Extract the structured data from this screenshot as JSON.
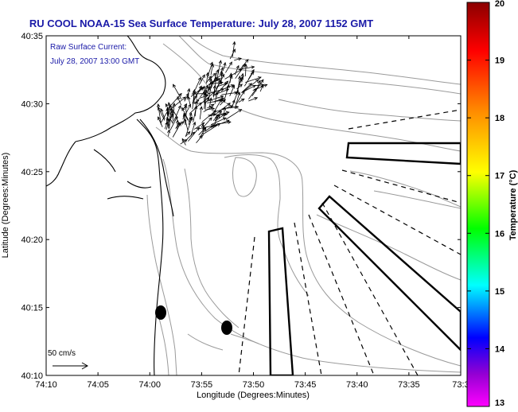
{
  "title": "RU COOL  NOAA-15  Sea Surface Temperature:  July 28, 2007 1152 GMT",
  "annotation": {
    "line1": "Raw Surface Current:",
    "line2": "July 28, 2007 13:00 GMT"
  },
  "scale_label": "50 cm/s",
  "axes": {
    "xlabel": "Longitude (Degrees:Minutes)",
    "ylabel": "Latitude (Degrees:Minutes)",
    "x_ticks": [
      "74:10",
      "74:05",
      "74:00",
      "73:55",
      "73:50",
      "73:45",
      "73:40",
      "73:35",
      "73:3"
    ],
    "y_ticks": [
      "40:35",
      "40:30",
      "40:25",
      "40:20",
      "40:15",
      "40:10"
    ]
  },
  "colorbar": {
    "label": "Temperature (°C)",
    "ticks": [
      "20",
      "19",
      "18",
      "17",
      "16",
      "15",
      "14",
      "13"
    ],
    "min": 13,
    "max": 20,
    "colors": [
      "#8b0000",
      "#ff0000",
      "#ff8c00",
      "#ffff00",
      "#00ff00",
      "#00ffff",
      "#0000ff",
      "#9400d3",
      "#ff00ff"
    ]
  },
  "colors": {
    "title": "#1a1aa8",
    "annotation": "#1a1aa8",
    "frame": "#000000",
    "contour": "#9a9a9a"
  }
}
